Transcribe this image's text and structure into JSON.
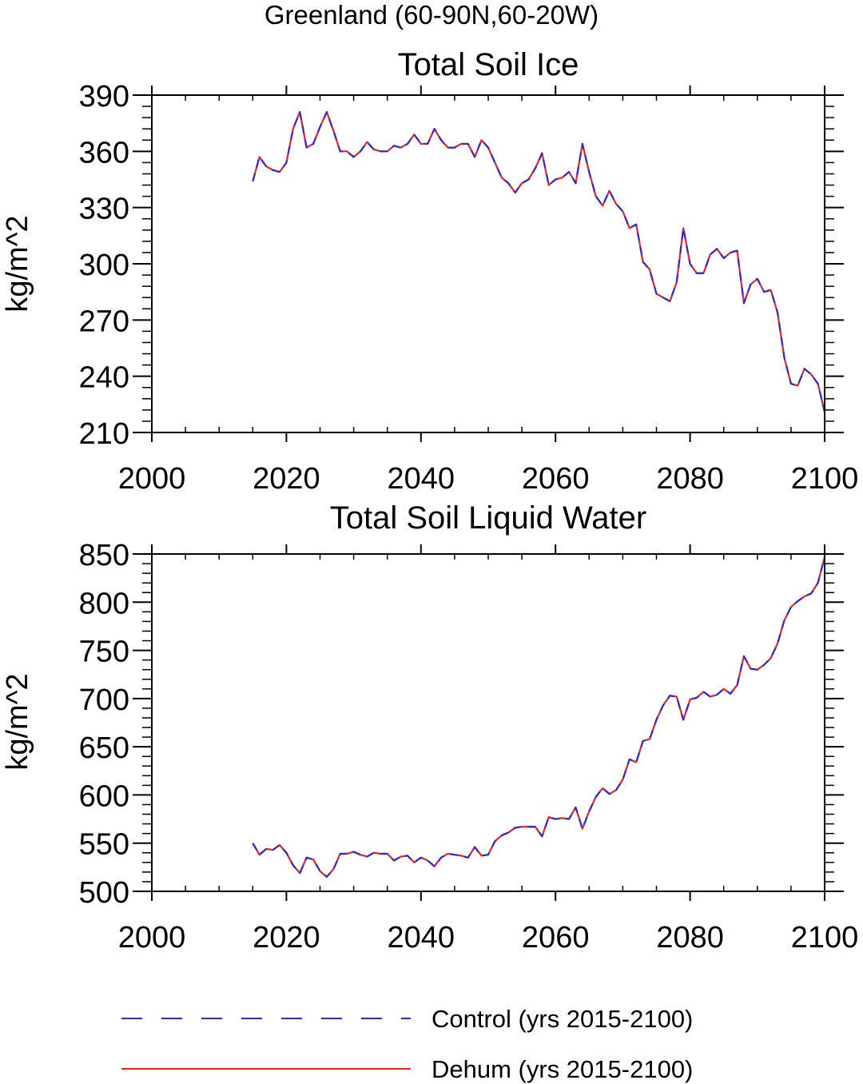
{
  "figure_title": "Greenland (60-90N,60-20W)",
  "legend": {
    "placement": "bottom",
    "entries": [
      {
        "label": "Control (yrs 2015-2100)",
        "color": "#2a2ad8",
        "style": "dashed"
      },
      {
        "label": "Dehum (yrs 2015-2100)",
        "color": "#f02020",
        "style": "solid"
      }
    ]
  },
  "chart_data": [
    {
      "type": "line",
      "title": "Total Soil Ice",
      "ylabel": "kg/m^2",
      "xlabel": "",
      "xlim": [
        2000,
        2100
      ],
      "ylim": [
        210,
        390
      ],
      "xticks": [
        2000,
        2020,
        2040,
        2060,
        2080,
        2100
      ],
      "yticks": [
        210,
        240,
        270,
        300,
        330,
        360,
        390
      ],
      "x_start": 2015,
      "x_step": 1,
      "series": [
        {
          "name": "Control (yrs 2015-2100)",
          "color": "#2a2ad8",
          "style": "dashed",
          "values": [
            344,
            357,
            352,
            350,
            349,
            354,
            372,
            381,
            362,
            364,
            373,
            381,
            371,
            360,
            360,
            357,
            360,
            365,
            361,
            360,
            360,
            363,
            362,
            364,
            369,
            364,
            364,
            372,
            366,
            362,
            362,
            364,
            364,
            357,
            366,
            362,
            354,
            346,
            343,
            338,
            343,
            345,
            351,
            359,
            342,
            345,
            346,
            349,
            343,
            364,
            349,
            336,
            331,
            339,
            332,
            328,
            319,
            321,
            301,
            297,
            284,
            282,
            280,
            290,
            319,
            300,
            295,
            295,
            305,
            308,
            303,
            306,
            307,
            279,
            289,
            292,
            285,
            286,
            274,
            250,
            236,
            235,
            244,
            241,
            236,
            221
          ]
        },
        {
          "name": "Dehum (yrs 2015-2100)",
          "color": "#f02020",
          "style": "solid",
          "values": [
            344,
            357,
            352,
            350,
            349,
            354,
            372,
            381,
            362,
            364,
            373,
            381,
            371,
            360,
            360,
            357,
            360,
            365,
            361,
            360,
            360,
            363,
            362,
            364,
            369,
            364,
            364,
            372,
            366,
            362,
            362,
            364,
            364,
            357,
            366,
            362,
            354,
            346,
            343,
            338,
            343,
            345,
            351,
            359,
            342,
            345,
            346,
            349,
            343,
            364,
            349,
            336,
            331,
            339,
            332,
            328,
            319,
            321,
            301,
            297,
            284,
            282,
            280,
            290,
            319,
            300,
            295,
            295,
            305,
            308,
            303,
            306,
            307,
            279,
            289,
            292,
            285,
            286,
            274,
            250,
            236,
            235,
            244,
            241,
            236,
            221
          ]
        }
      ]
    },
    {
      "type": "line",
      "title": "Total Soil Liquid Water",
      "ylabel": "kg/m^2",
      "xlabel": "",
      "xlim": [
        2000,
        2100
      ],
      "ylim": [
        500,
        850
      ],
      "xticks": [
        2000,
        2020,
        2040,
        2060,
        2080,
        2100
      ],
      "yticks": [
        500,
        550,
        600,
        650,
        700,
        750,
        800,
        850
      ],
      "x_start": 2015,
      "x_step": 1,
      "series": [
        {
          "name": "Control (yrs 2015-2100)",
          "color": "#2a2ad8",
          "style": "dashed",
          "values": [
            550,
            538,
            544,
            543,
            548,
            540,
            527,
            519,
            535,
            533,
            521,
            515,
            523,
            539,
            539,
            541,
            538,
            536,
            540,
            539,
            539,
            532,
            536,
            537,
            530,
            535,
            532,
            526,
            535,
            539,
            538,
            537,
            535,
            546,
            537,
            538,
            552,
            558,
            561,
            566,
            567,
            567,
            567,
            557,
            577,
            575,
            576,
            575,
            587,
            565,
            583,
            598,
            607,
            601,
            605,
            616,
            637,
            634,
            656,
            658,
            678,
            693,
            703,
            702,
            678,
            699,
            701,
            707,
            702,
            704,
            710,
            705,
            714,
            744,
            731,
            730,
            735,
            742,
            757,
            781,
            795,
            801,
            806,
            809,
            820,
            847
          ]
        },
        {
          "name": "Dehum (yrs 2015-2100)",
          "color": "#f02020",
          "style": "solid",
          "values": [
            550,
            538,
            544,
            543,
            548,
            540,
            527,
            519,
            535,
            533,
            521,
            515,
            523,
            539,
            539,
            541,
            538,
            536,
            540,
            539,
            539,
            532,
            536,
            537,
            530,
            535,
            532,
            526,
            535,
            539,
            538,
            537,
            535,
            546,
            537,
            538,
            552,
            558,
            561,
            566,
            567,
            567,
            567,
            557,
            577,
            575,
            576,
            575,
            587,
            565,
            583,
            598,
            607,
            601,
            605,
            616,
            637,
            634,
            656,
            658,
            678,
            693,
            703,
            702,
            678,
            699,
            701,
            707,
            702,
            704,
            710,
            705,
            714,
            744,
            731,
            730,
            735,
            742,
            757,
            781,
            795,
            801,
            806,
            809,
            820,
            847
          ]
        }
      ]
    }
  ]
}
